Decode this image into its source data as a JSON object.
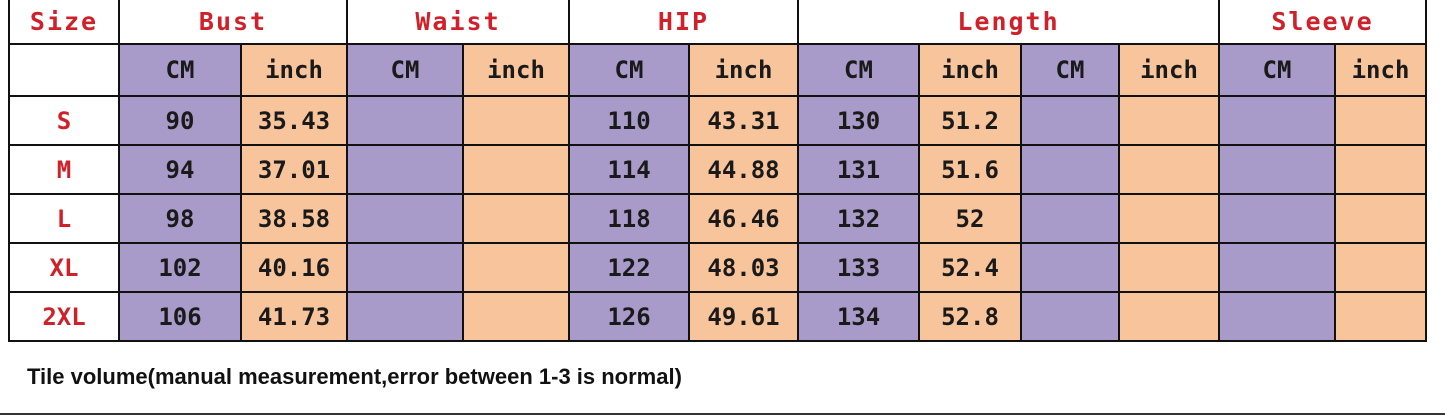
{
  "headers": {
    "size": "Size",
    "bust": "Bust",
    "waist": "Waist",
    "hip": "HIP",
    "length": "Length",
    "sleeve": "Sleeve"
  },
  "units": [
    "CM",
    "inch",
    "CM",
    "inch",
    "CM",
    "inch",
    "CM",
    "inch",
    "CM",
    "inch",
    "CM",
    "inch"
  ],
  "rows": [
    {
      "size": "S",
      "cells": [
        "90",
        "35.43",
        "",
        "",
        "110",
        "43.31",
        "130",
        "51.2",
        "",
        "",
        "",
        ""
      ]
    },
    {
      "size": "M",
      "cells": [
        "94",
        "37.01",
        "",
        "",
        "114",
        "44.88",
        "131",
        "51.6",
        "",
        "",
        "",
        ""
      ]
    },
    {
      "size": "L",
      "cells": [
        "98",
        "38.58",
        "",
        "",
        "118",
        "46.46",
        "132",
        "52",
        "",
        "",
        "",
        ""
      ]
    },
    {
      "size": "XL",
      "cells": [
        "102",
        "40.16",
        "",
        "",
        "122",
        "48.03",
        "133",
        "52.4",
        "",
        "",
        "",
        ""
      ]
    },
    {
      "size": "2XL",
      "cells": [
        "106",
        "41.73",
        "",
        "",
        "126",
        "49.61",
        "134",
        "52.8",
        "",
        "",
        "",
        ""
      ]
    }
  ],
  "note": "Tile volume(manual measurement,error between 1-3 is normal)",
  "colors": {
    "cm_fill": "#a99bc9",
    "inch_fill": "#f7c49b",
    "header_text": "#d0202a"
  }
}
